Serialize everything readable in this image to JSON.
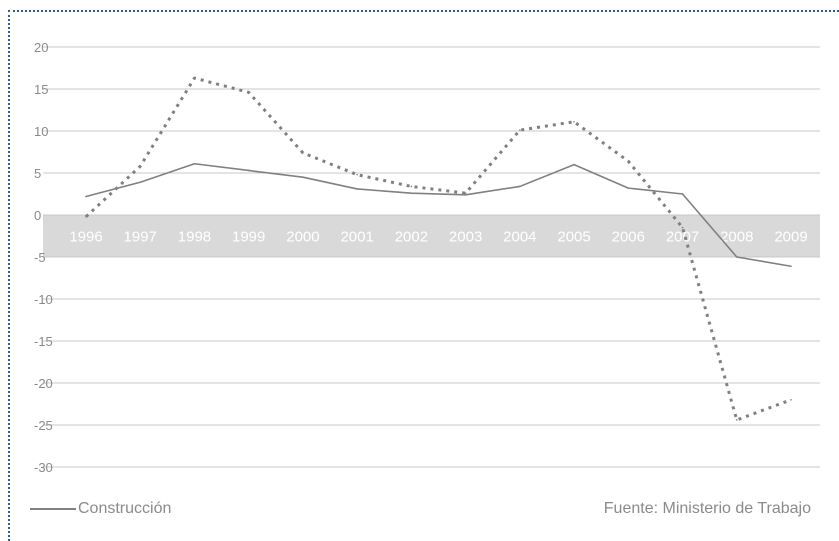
{
  "chart_data": {
    "type": "line",
    "categories": [
      "1996",
      "1997",
      "1998",
      "1999",
      "2000",
      "2001",
      "2002",
      "2003",
      "2004",
      "2005",
      "2006",
      "2007",
      "2008",
      "2009"
    ],
    "series": [
      {
        "name": "Construcción",
        "style": "solid",
        "color": "#808080",
        "values": [
          2.2,
          3.9,
          6.1,
          5.3,
          4.5,
          3.1,
          2.6,
          2.4,
          3.4,
          6.0,
          3.2,
          2.5,
          -5.0,
          -6.1
        ]
      },
      {
        "style": "dotted",
        "color": "#808080",
        "values": [
          -0.2,
          5.8,
          16.3,
          14.6,
          7.4,
          4.8,
          3.4,
          2.6,
          10.1,
          11.1,
          6.4,
          -1.5,
          -24.4,
          -22.0
        ]
      }
    ],
    "yticks": [
      "20",
      "15",
      "10",
      "5",
      "0",
      "-5",
      "-10",
      "-15",
      "-20",
      "-25",
      "-30"
    ],
    "ylim": [
      -30,
      20
    ],
    "grid": true,
    "band": {
      "from": -5,
      "to": 0,
      "color": "#d9d9d9"
    },
    "category_label_color": "#ffffff"
  },
  "legend": {
    "label": "Construcción"
  },
  "source": "Fuente: Ministerio de Trabajo",
  "colors": {
    "frame": "#2f5f8f",
    "grid": "#c8c8c8",
    "tick_text": "#8a8a8a"
  }
}
